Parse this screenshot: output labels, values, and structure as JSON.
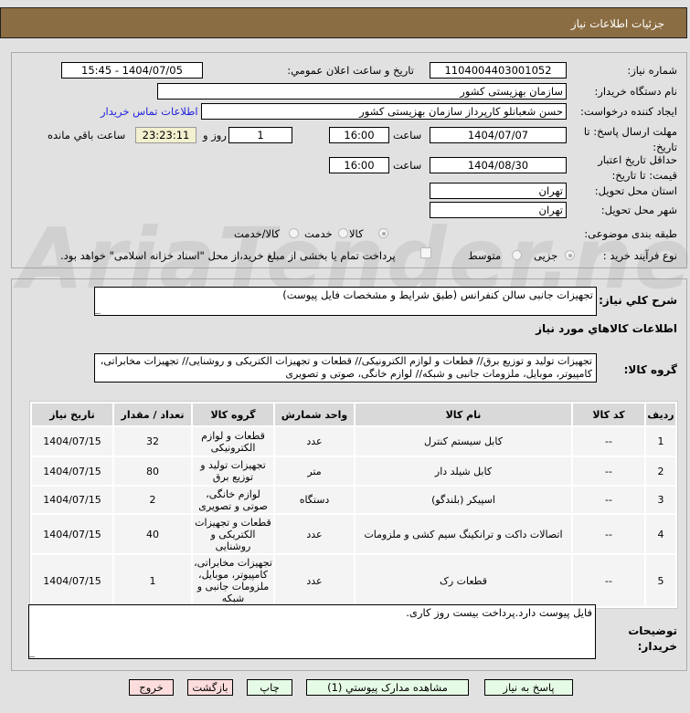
{
  "header": {
    "title": "جزئیات اطلاعات نیاز"
  },
  "form": {
    "need_number_label": "شماره نیاز:",
    "need_number": "1104004403001052",
    "announce_label": "تاریخ و ساعت اعلان عمومي:",
    "announce_value": "1404/07/05 - 15:45",
    "buyer_label": "نام دستگاه خریدار:",
    "buyer_value": "سازمان بهزیستی کشور",
    "creator_label": "ایجاد کننده درخواست:",
    "creator_value": "حسن  شعبانلو کارپرداز سازمان بهزیستی کشور",
    "contact_link": "اطلاعات تماس خریدار",
    "deadline_label": "مهلت ارسال پاسخ: تا تاریخ:",
    "deadline_date": "1404/07/07",
    "hour_label": "ساعت",
    "deadline_time": "16:00",
    "days": "1",
    "days_label": "روز و",
    "remaining": "23:23:11",
    "remaining_label": "ساعت باقي مانده",
    "validity_label": "حداقل تاریخ اعتبار قیمت: تا تاریخ:",
    "validity_date": "1404/08/30",
    "validity_time": "16:00",
    "province_label": "استان محل تحویل:",
    "province": "تهران",
    "city_label": "شهر محل تحویل:",
    "city": "تهران",
    "category_label": "طبقه بندی موضوعی:",
    "category_options": [
      "کالا",
      "خدمت",
      "کالا/خدمت"
    ],
    "category_selected": "کالا",
    "process_label": "نوع فرآیند خرید :",
    "process_options": [
      "جزیی",
      "متوسط"
    ],
    "process_selected": "جزیی",
    "payment_note": "پرداخت تمام یا بخشی از مبلغ خرید،از محل \"اسناد خزانه اسلامی\" خواهد بود."
  },
  "description": {
    "label": "شرح کلي نیاز:",
    "value": "تجهیزات جانبی سالن کنفرانس (طبق شرایط و مشخصات فایل پیوست)"
  },
  "items_heading": "اطلاعات کالاهاي مورد نیاز",
  "goods_group": {
    "label": "گروه کالا:",
    "value": "تجهیزات تولید و توزیع برق// قطعات و لوازم الکترونیکی// قطعات و تجهیزات الکتریکی و روشنایی// تجهیزات مخابراتی، کامپیوتر، موبایل، ملزومات جانبی و شبکه// لوازم خانگی، صوتی و تصویری"
  },
  "table": {
    "headers": [
      "ردیف",
      "کد کالا",
      "نام کالا",
      "واحد شمارش",
      "گروه کالا",
      "تعداد / مقدار",
      "تاریخ نیاز"
    ],
    "rows": [
      [
        "1",
        "--",
        "کابل سیستم کنترل",
        "عدد",
        "قطعات و لوازم الکترونیکی",
        "32",
        "1404/07/15"
      ],
      [
        "2",
        "--",
        "کابل شیلد دار",
        "متر",
        "تجهیزات تولید و توزیع برق",
        "80",
        "1404/07/15"
      ],
      [
        "3",
        "--",
        "اسپیکر (بلندگو)",
        "دستگاه",
        "لوازم خانگی، صوتی و تصویری",
        "2",
        "1404/07/15"
      ],
      [
        "4",
        "--",
        "اتصالات داکت و ترانکینگ سیم کشی و ملزومات",
        "عدد",
        "قطعات و تجهیزات الکتریکی و روشنایی",
        "40",
        "1404/07/15"
      ],
      [
        "5",
        "--",
        "قطعات رک",
        "عدد",
        "تجهیزات مخابراتی، کامپیوتر، موبایل، ملزومات جانبی و شبکه",
        "1",
        "1404/07/15"
      ]
    ]
  },
  "notes": {
    "label": "توضیحات خریدار:",
    "value": "فایل پیوست دارد.پرداخت بیست روز کاری."
  },
  "buttons": {
    "reply": "پاسخ به نیاز",
    "attachments": "مشاهده مدارک پیوستي (1)",
    "print": "چاپ",
    "back": "بازگشت",
    "exit": "خروج"
  },
  "watermark": "AriaTender.net"
}
